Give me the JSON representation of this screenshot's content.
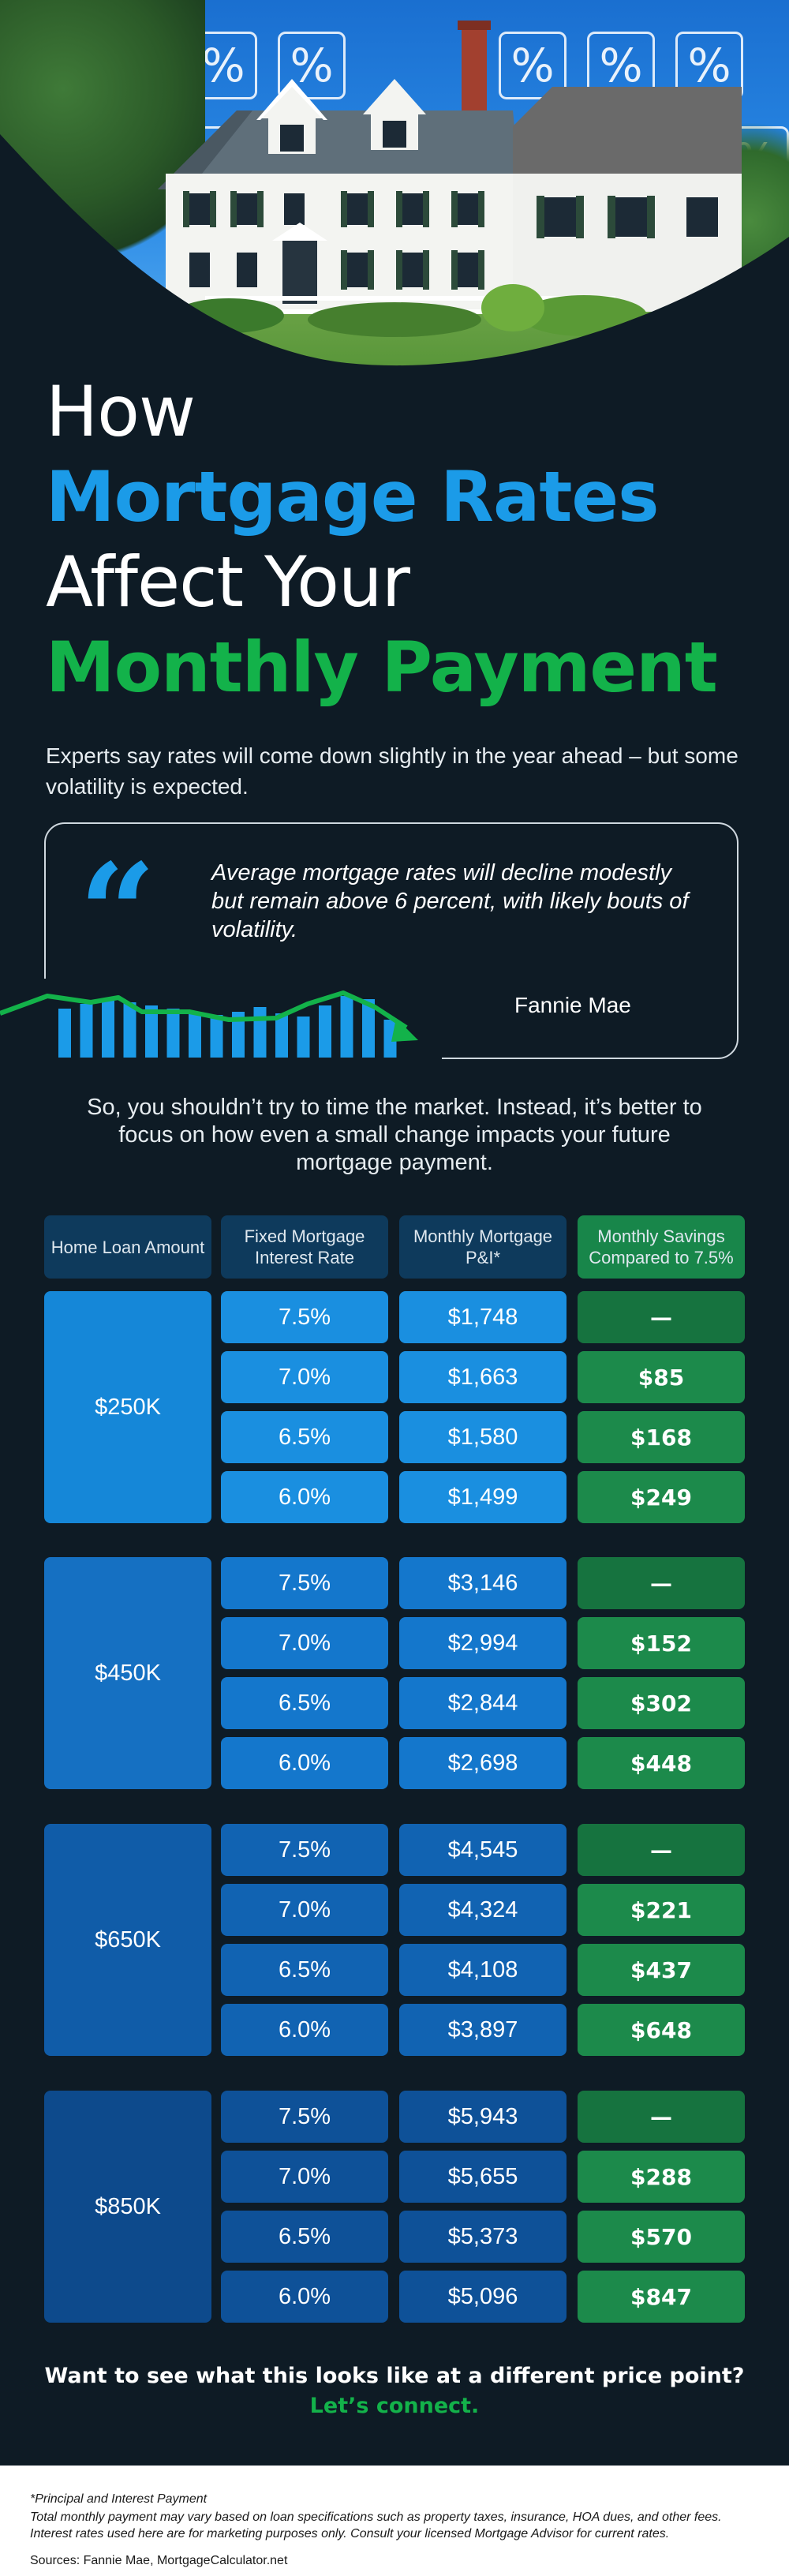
{
  "title": {
    "line1": "How",
    "line2": "Mortgage Rates",
    "line3": "Affect Your",
    "line4": "Monthly Payment"
  },
  "intro": "Experts say rates will come down slightly in the year ahead – but some volatility is expected.",
  "quote": {
    "mark": "“",
    "text": "Average mortgage rates will decline modestly but remain above 6 percent, with likely bouts of volatility.",
    "source": "Fannie Mae"
  },
  "middle_text": "So, you shouldn’t try to time the market. Instead, it’s better to focus on how even a small change impacts your future mortgage payment.",
  "table": {
    "headers": [
      "Home Loan Amount",
      "Fixed Mortgage Interest Rate",
      "Monthly Mortgage P&I*",
      "Monthly Savings Compared to 7.5%"
    ],
    "groups": [
      {
        "amount": "$250K",
        "rows": [
          {
            "rate": "7.5%",
            "payment": "$1,748",
            "savings": "—"
          },
          {
            "rate": "7.0%",
            "payment": "$1,663",
            "savings": "$85"
          },
          {
            "rate": "6.5%",
            "payment": "$1,580",
            "savings": "$168"
          },
          {
            "rate": "6.0%",
            "payment": "$1,499",
            "savings": "$249"
          }
        ]
      },
      {
        "amount": "$450K",
        "rows": [
          {
            "rate": "7.5%",
            "payment": "$3,146",
            "savings": "—"
          },
          {
            "rate": "7.0%",
            "payment": "$2,994",
            "savings": "$152"
          },
          {
            "rate": "6.5%",
            "payment": "$2,844",
            "savings": "$302"
          },
          {
            "rate": "6.0%",
            "payment": "$2,698",
            "savings": "$448"
          }
        ]
      },
      {
        "amount": "$650K",
        "rows": [
          {
            "rate": "7.5%",
            "payment": "$4,545",
            "savings": "—"
          },
          {
            "rate": "7.0%",
            "payment": "$4,324",
            "savings": "$221"
          },
          {
            "rate": "6.5%",
            "payment": "$4,108",
            "savings": "$437"
          },
          {
            "rate": "6.0%",
            "payment": "$3,897",
            "savings": "$648"
          }
        ]
      },
      {
        "amount": "$850K",
        "rows": [
          {
            "rate": "7.5%",
            "payment": "$5,943",
            "savings": "—"
          },
          {
            "rate": "7.0%",
            "payment": "$5,655",
            "savings": "$288"
          },
          {
            "rate": "6.5%",
            "payment": "$5,373",
            "savings": "$570"
          },
          {
            "rate": "6.0%",
            "payment": "$5,096",
            "savings": "$847"
          }
        ]
      }
    ]
  },
  "cta": {
    "question": "Want to see what this looks like at a different price point?",
    "link": "Let’s connect."
  },
  "footer": {
    "note_title": "*Principal and Interest Payment",
    "note_body": "Total monthly payment may vary based on loan specifications such as property taxes, insurance, HOA dues, and other fees. Interest rates used here are for marketing purposes only. Consult your licensed Mortgage Advisor for current rates.",
    "sources": "Sources: Fannie Mae, MortgageCalculator.net"
  },
  "colors": {
    "background": "#0e1b25",
    "accent_blue": "#1b9be8",
    "accent_green": "#13b24a",
    "group_blues": [
      "#1587d8",
      "#1570c2",
      "#105ca8",
      "#0d4a8c"
    ],
    "cell_blues": [
      "#1a8fe0",
      "#1477cc",
      "#1163b2",
      "#0e5198"
    ]
  },
  "icons": {
    "hero_pattern": "percent-icon",
    "quote": "quote-icon",
    "chart_decoration": "bar-chart-trend-icon"
  }
}
